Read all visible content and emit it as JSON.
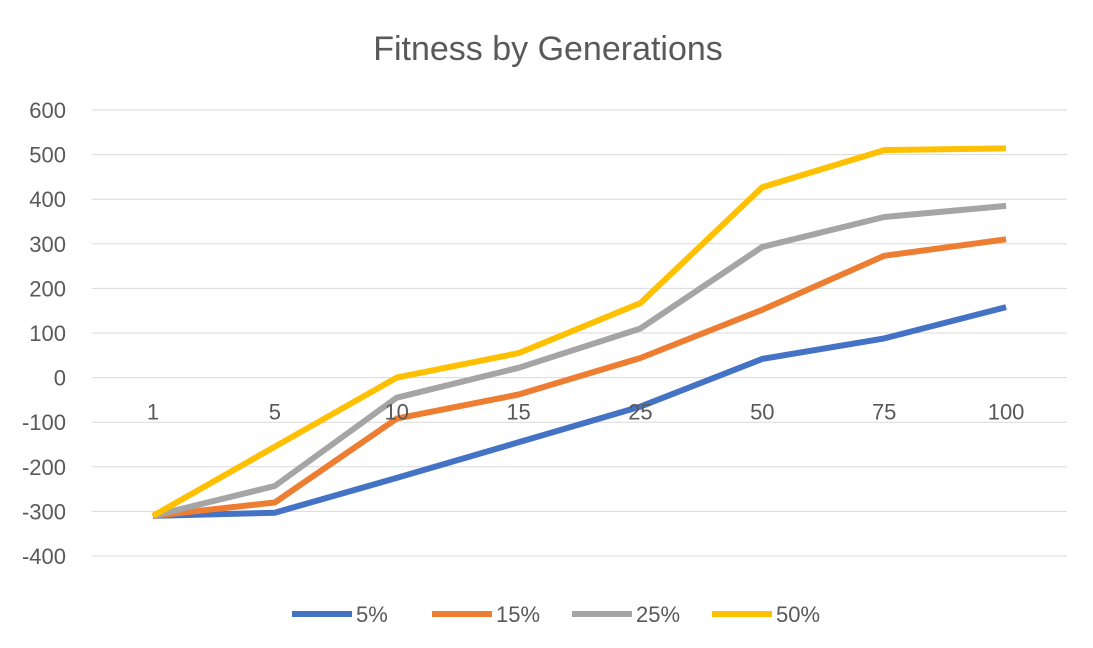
{
  "chart_data": {
    "type": "line",
    "title": "Fitness by Generations",
    "xlabel": "",
    "ylabel": "",
    "categories": [
      "1",
      "5",
      "10",
      "15",
      "25",
      "50",
      "75",
      "100"
    ],
    "ylim": [
      -400,
      600
    ],
    "yticks": [
      600,
      500,
      400,
      300,
      200,
      100,
      0,
      -100,
      -200,
      -300,
      -400
    ],
    "grid": true,
    "legend_position": "bottom",
    "series": [
      {
        "name": "5%",
        "color": "#4472C4",
        "values": [
          -310,
          -303,
          -225,
          -145,
          -65,
          42,
          88,
          158
        ]
      },
      {
        "name": "15%",
        "color": "#ED7D31",
        "values": [
          -310,
          -280,
          -92,
          -38,
          44,
          152,
          273,
          310
        ]
      },
      {
        "name": "25%",
        "color": "#A5A5A5",
        "values": [
          -310,
          -243,
          -45,
          22,
          110,
          293,
          360,
          385
        ]
      },
      {
        "name": "50%",
        "color": "#FFC000",
        "values": [
          -310,
          -155,
          0,
          55,
          167,
          427,
          510,
          514
        ]
      }
    ]
  }
}
